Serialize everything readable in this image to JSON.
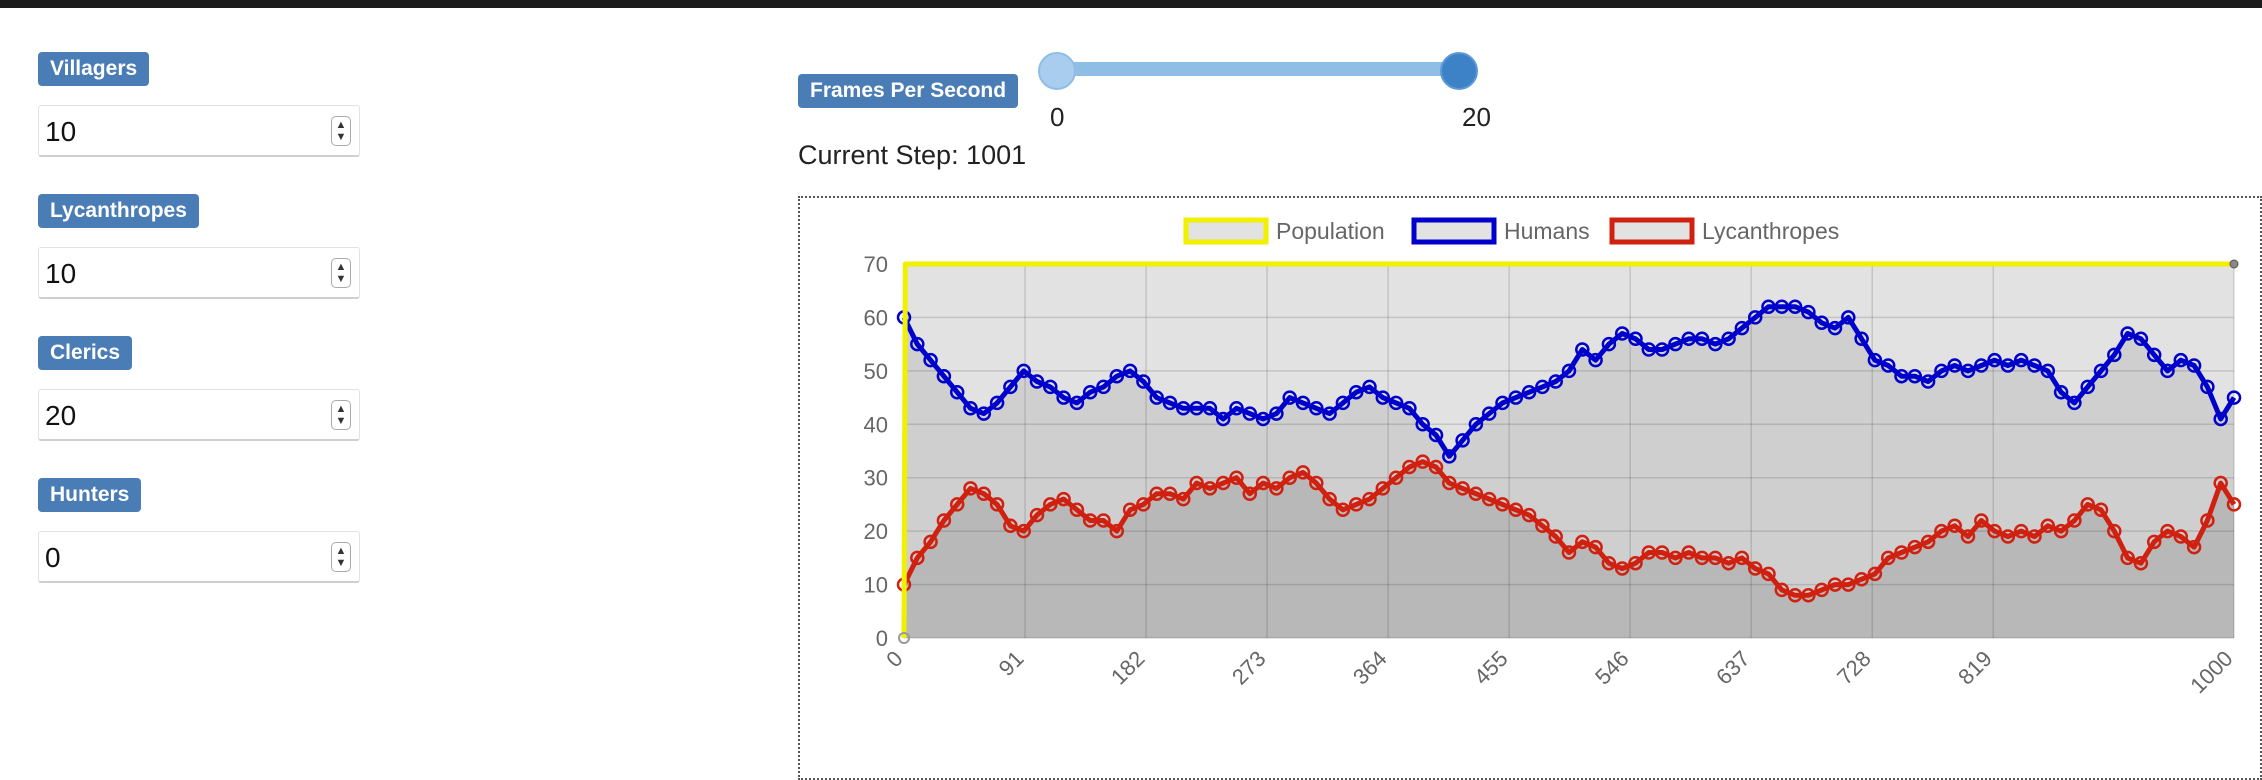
{
  "params": [
    {
      "label": "Villagers",
      "value": "10"
    },
    {
      "label": "Lycanthropes",
      "value": "10"
    },
    {
      "label": "Clerics",
      "value": "20"
    },
    {
      "label": "Hunters",
      "value": "0"
    }
  ],
  "fps": {
    "label": "Frames Per Second",
    "min": "0",
    "max": "20"
  },
  "current_step_text": "Current Step: 1001",
  "colors": {
    "badge": "#4a7db5",
    "population": "#f0f000",
    "humans": "#0000cc",
    "lycanthropes": "#d02010",
    "plot_bg": "#e2e2e2"
  },
  "chart_data": {
    "type": "line",
    "title": "",
    "xlabel": "",
    "ylabel": "",
    "xlim": [
      0,
      1000
    ],
    "ylim": [
      0,
      70
    ],
    "x_ticks": [
      "0",
      "91",
      "182",
      "273",
      "364",
      "455",
      "546",
      "637",
      "728",
      "819",
      "1000"
    ],
    "y_ticks": [
      "0",
      "10",
      "20",
      "30",
      "40",
      "50",
      "60",
      "70"
    ],
    "grid": true,
    "legend": "top-center",
    "series": [
      {
        "name": "Population",
        "x": [
          0,
          1,
          1000
        ],
        "y": [
          0,
          70,
          70
        ]
      },
      {
        "name": "Humans",
        "x": [
          0,
          10,
          20,
          30,
          40,
          50,
          60,
          70,
          80,
          90,
          100,
          110,
          120,
          130,
          140,
          150,
          160,
          170,
          180,
          190,
          200,
          210,
          220,
          230,
          240,
          250,
          260,
          270,
          280,
          290,
          300,
          310,
          320,
          330,
          340,
          350,
          360,
          370,
          380,
          390,
          400,
          410,
          420,
          430,
          440,
          450,
          460,
          470,
          480,
          490,
          500,
          510,
          520,
          530,
          540,
          550,
          560,
          570,
          580,
          590,
          600,
          610,
          620,
          630,
          640,
          650,
          660,
          670,
          680,
          690,
          700,
          710,
          720,
          730,
          740,
          750,
          760,
          770,
          780,
          790,
          800,
          810,
          820,
          830,
          840,
          850,
          860,
          870,
          880,
          890,
          900,
          910,
          920,
          930,
          940,
          950,
          960,
          970,
          980,
          990,
          1000
        ],
        "y": [
          60,
          55,
          52,
          49,
          46,
          43,
          42,
          44,
          47,
          50,
          48,
          47,
          45,
          44,
          46,
          47,
          49,
          50,
          48,
          45,
          44,
          43,
          43,
          43,
          41,
          43,
          42,
          41,
          42,
          45,
          44,
          43,
          42,
          44,
          46,
          47,
          45,
          44,
          43,
          40,
          38,
          34,
          37,
          40,
          42,
          44,
          45,
          46,
          47,
          48,
          50,
          54,
          52,
          55,
          57,
          56,
          54,
          54,
          55,
          56,
          56,
          55,
          56,
          58,
          60,
          62,
          62,
          62,
          61,
          59,
          58,
          60,
          56,
          52,
          51,
          49,
          49,
          48,
          50,
          51,
          50,
          51,
          52,
          51,
          52,
          51,
          50,
          46,
          44,
          47,
          50,
          53,
          57,
          56,
          53,
          50,
          52,
          51,
          47,
          41,
          45
        ]
      },
      {
        "name": "Lycanthropes",
        "x": [
          0,
          10,
          20,
          30,
          40,
          50,
          60,
          70,
          80,
          90,
          100,
          110,
          120,
          130,
          140,
          150,
          160,
          170,
          180,
          190,
          200,
          210,
          220,
          230,
          240,
          250,
          260,
          270,
          280,
          290,
          300,
          310,
          320,
          330,
          340,
          350,
          360,
          370,
          380,
          390,
          400,
          410,
          420,
          430,
          440,
          450,
          460,
          470,
          480,
          490,
          500,
          510,
          520,
          530,
          540,
          550,
          560,
          570,
          580,
          590,
          600,
          610,
          620,
          630,
          640,
          650,
          660,
          670,
          680,
          690,
          700,
          710,
          720,
          730,
          740,
          750,
          760,
          770,
          780,
          790,
          800,
          810,
          820,
          830,
          840,
          850,
          860,
          870,
          880,
          890,
          900,
          910,
          920,
          930,
          940,
          950,
          960,
          970,
          980,
          990,
          1000
        ],
        "y": [
          10,
          15,
          18,
          22,
          25,
          28,
          27,
          25,
          21,
          20,
          23,
          25,
          26,
          24,
          22,
          22,
          20,
          24,
          25,
          27,
          27,
          26,
          29,
          28,
          29,
          30,
          27,
          29,
          28,
          30,
          31,
          29,
          26,
          24,
          25,
          26,
          28,
          30,
          32,
          33,
          32,
          29,
          28,
          27,
          26,
          25,
          24,
          23,
          21,
          19,
          16,
          18,
          17,
          14,
          13,
          14,
          16,
          16,
          15,
          16,
          15,
          15,
          14,
          15,
          13,
          12,
          9,
          8,
          8,
          9,
          10,
          10,
          11,
          12,
          15,
          16,
          17,
          18,
          20,
          21,
          19,
          22,
          20,
          19,
          20,
          19,
          21,
          20,
          22,
          25,
          24,
          20,
          15,
          14,
          18,
          20,
          19,
          17,
          22,
          29,
          25
        ]
      }
    ]
  }
}
